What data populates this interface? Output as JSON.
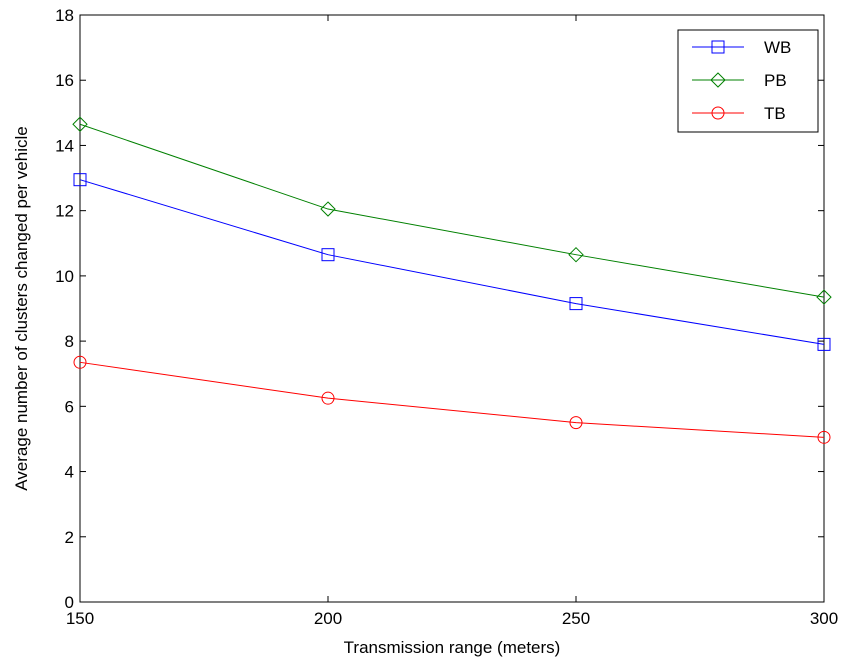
{
  "chart_data": {
    "type": "line",
    "title": "",
    "xlabel": "Transmission range (meters)",
    "ylabel": "Average number of clusters changed per vehicle",
    "x": [
      150,
      200,
      250,
      300
    ],
    "xlim": [
      150,
      300
    ],
    "ylim": [
      0,
      18
    ],
    "xticks": [
      "150",
      "200",
      "250",
      "300"
    ],
    "yticks": [
      "0",
      "2",
      "4",
      "6",
      "8",
      "10",
      "12",
      "14",
      "16",
      "18"
    ],
    "grid": false,
    "legend_position": "top-right",
    "series": [
      {
        "name": "WB",
        "values": [
          12.95,
          10.65,
          9.15,
          7.9
        ],
        "color": "#0000ff",
        "marker": "square"
      },
      {
        "name": "PB",
        "values": [
          14.65,
          12.05,
          10.65,
          9.35
        ],
        "color": "#008000",
        "marker": "diamond"
      },
      {
        "name": "TB",
        "values": [
          7.35,
          6.25,
          5.5,
          5.05
        ],
        "color": "#ff0000",
        "marker": "circle"
      }
    ]
  }
}
